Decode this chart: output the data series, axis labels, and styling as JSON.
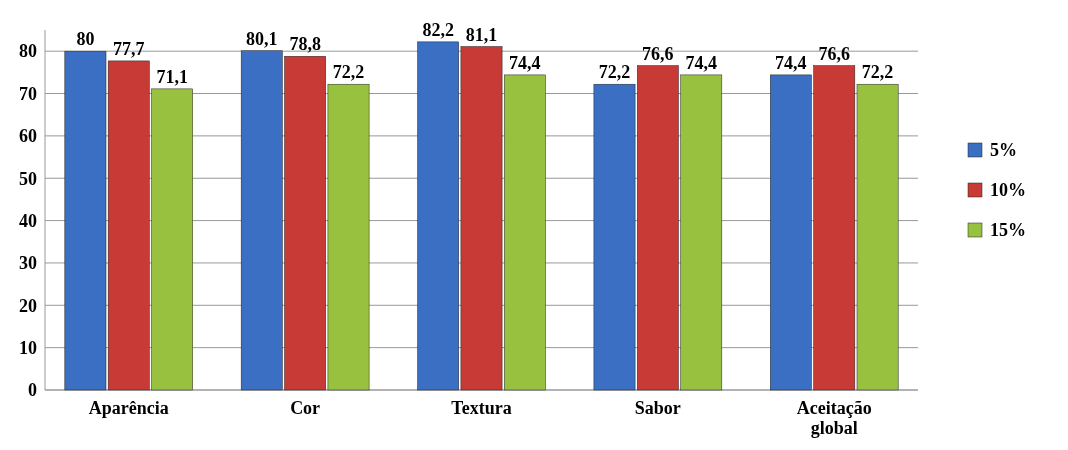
{
  "chart_data": {
    "type": "bar",
    "categories": [
      "Aparência",
      "Cor",
      "Textura",
      "Sabor",
      "Aceitação global"
    ],
    "series": [
      {
        "name": "5%",
        "color": "#3a6fc4",
        "values": [
          80,
          80.1,
          82.2,
          72.2,
          74.4
        ],
        "value_labels": [
          "80",
          "80,1",
          "82,2",
          "72,2",
          "74,4"
        ]
      },
      {
        "name": "10%",
        "color": "#c83a36",
        "values": [
          77.7,
          78.8,
          81.1,
          76.6,
          76.6
        ],
        "value_labels": [
          "77,7",
          "78,8",
          "81,1",
          "76,6",
          "76,6"
        ]
      },
      {
        "name": "15%",
        "color": "#98c140",
        "values": [
          71.1,
          72.2,
          74.4,
          74.4,
          72.2
        ],
        "value_labels": [
          "71,1",
          "72,2",
          "74,4",
          "74,4",
          "72,2"
        ]
      }
    ],
    "ylim": [
      0,
      85
    ],
    "yticks": [
      0,
      10,
      20,
      30,
      40,
      50,
      60,
      70,
      80
    ],
    "grid": "y",
    "legend": "right"
  }
}
